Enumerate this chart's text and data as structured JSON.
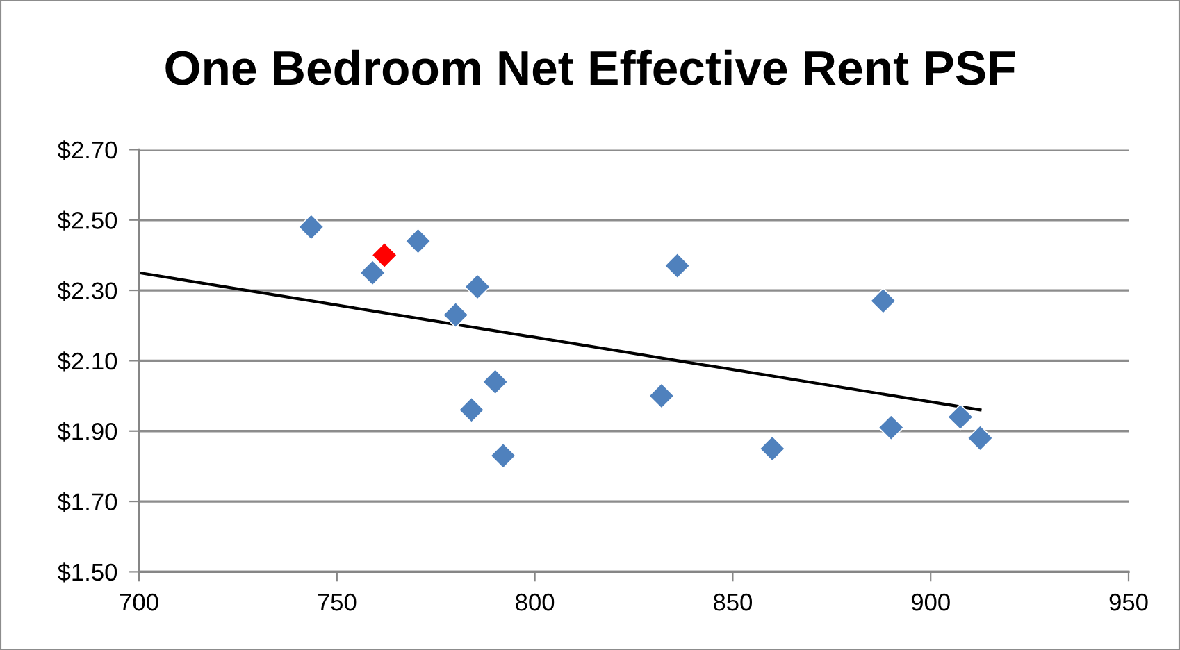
{
  "chart_data": {
    "type": "scatter",
    "title": "One Bedroom Net Effective Rent PSF",
    "series": [
      {
        "x": [
          743.5,
          759,
          770.5,
          780,
          784,
          785.5,
          790,
          792,
          832,
          836,
          860,
          888,
          890,
          907.5,
          912.5
        ],
        "values": [
          2.48,
          2.35,
          2.44,
          2.23,
          1.96,
          2.31,
          2.04,
          1.83,
          2.0,
          2.37,
          1.85,
          2.27,
          1.91,
          1.94,
          1.88
        ],
        "color": "#4f81bd"
      },
      {
        "x": [
          762
        ],
        "values": [
          2.4
        ],
        "color": "#ff0000"
      },
      {
        "type": "line",
        "x": [
          700,
          912.5
        ],
        "values": [
          2.35,
          1.96
        ],
        "color": "#000000",
        "marker": "none"
      }
    ],
    "xlim": [
      700,
      950
    ],
    "xticks": [
      700,
      750,
      800,
      850,
      900,
      950
    ],
    "ylim": [
      1.5,
      2.7
    ],
    "yticks": [
      {
        "value": 1.5,
        "label": "$1.50"
      },
      {
        "value": 1.7,
        "label": "$1.70"
      },
      {
        "value": 1.9,
        "label": "$1.90"
      },
      {
        "value": 2.1,
        "label": "$2.10"
      },
      {
        "value": 2.3,
        "label": "$2.30"
      },
      {
        "value": 2.5,
        "label": "$2.50"
      },
      {
        "value": 2.7,
        "label": "$2.70"
      }
    ],
    "grid": "y",
    "marker": "diamond",
    "line_style": "solid"
  }
}
